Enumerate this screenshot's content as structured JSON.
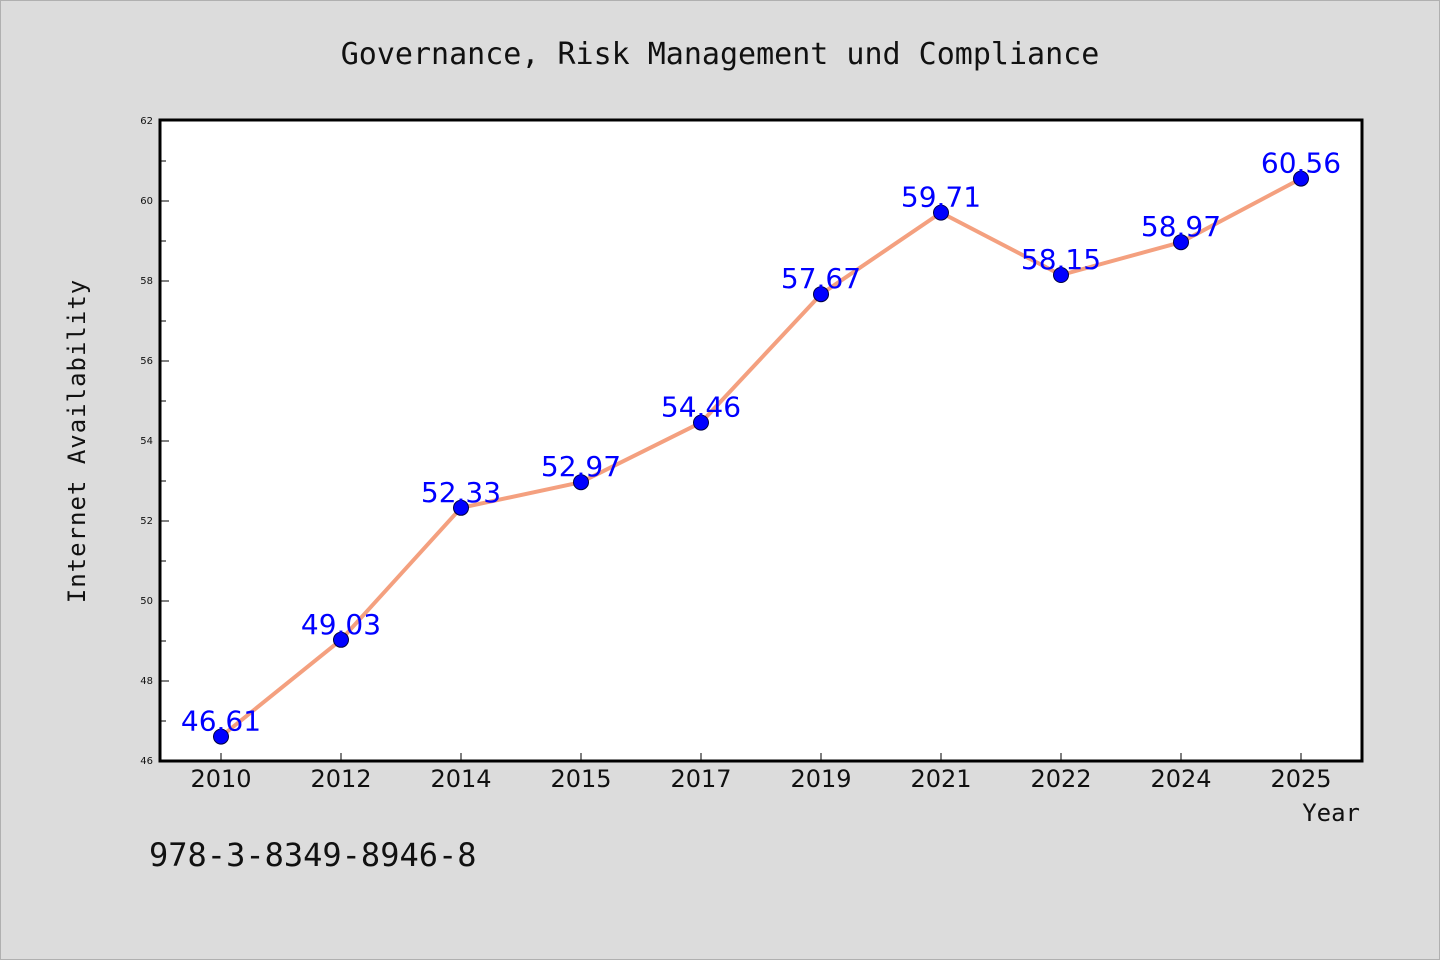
{
  "chart_data": {
    "type": "line",
    "title": "Governance, Risk Management und Compliance",
    "xlabel": "Year",
    "ylabel": "Internet Availability",
    "categories": [
      "2010",
      "2012",
      "2014",
      "2015",
      "2017",
      "2019",
      "2021",
      "2022",
      "2024",
      "2025"
    ],
    "series": [
      {
        "values": [
          46.61,
          49.03,
          52.33,
          52.97,
          54.46,
          57.67,
          59.71,
          58.15,
          58.97,
          60.56
        ],
        "labels": [
          "46.61",
          "49.03",
          "52.33",
          "52.97",
          "54.46",
          "57.67",
          "59.71",
          "58.15",
          "58.97",
          "60.56"
        ],
        "line_color": "#f4a07f",
        "marker_color": "#0000ff"
      }
    ],
    "ylim": [
      46,
      62
    ],
    "yticks": [
      "46",
      "48",
      "50",
      "52",
      "54",
      "56",
      "58",
      "60",
      "62"
    ],
    "grid": false,
    "legend": "none"
  },
  "footnote": "978-3-8349-8946-8",
  "colors": {
    "background": "#dcdcdc",
    "plot_background": "#ffffff",
    "label_color": "#0000ff"
  }
}
